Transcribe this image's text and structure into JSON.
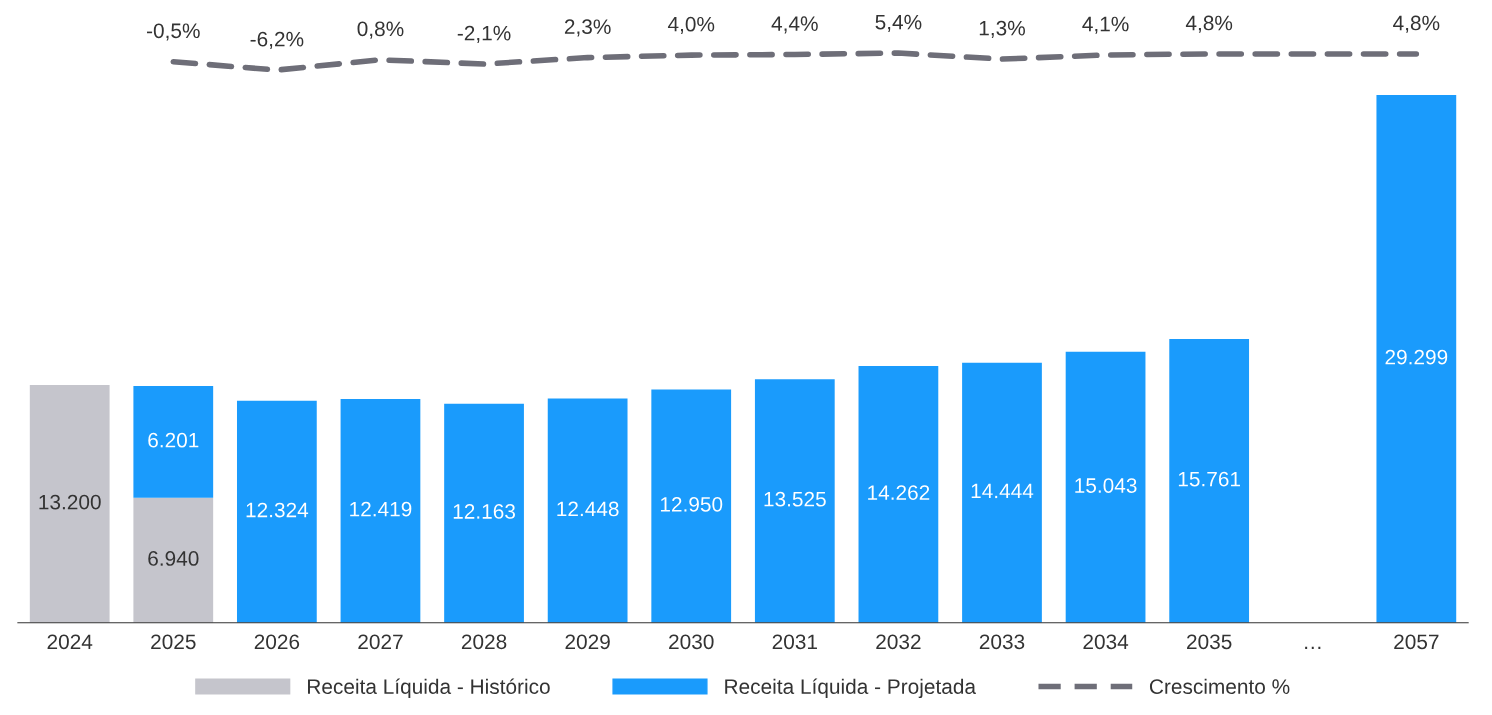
{
  "chart_data": [
    {
      "type": "line",
      "categories": [
        null,
        null,
        null,
        null,
        null,
        null,
        null,
        null,
        null,
        null,
        null,
        null,
        null,
        null
      ],
      "series": [
        {
          "name": "Crescimento %",
          "color": "#6e6e78",
          "values": [
            null,
            -0.5,
            -6.2,
            0.8,
            -2.1,
            2.3,
            4.0,
            4.4,
            5.4,
            1.3,
            4.1,
            4.8,
            null,
            4.8
          ],
          "value_labels": [
            null,
            "-0,5%",
            "-6,2%",
            "0,8%",
            "-2,1%",
            "2,3%",
            "4,0%",
            "4,4%",
            "5,4%",
            "1,3%",
            "4,1%",
            "4,8%",
            null,
            "4,8%"
          ]
        }
      ],
      "line_style": "dashed",
      "marker": "none",
      "data_labels": true,
      "tick_labels": false,
      "grid": false
    },
    {
      "type": "bar",
      "stacked": true,
      "categories": [
        "2024",
        "2025",
        "2026",
        "2027",
        "2028",
        "2029",
        "2030",
        "2031",
        "2032",
        "2033",
        "2034",
        "2035",
        "…",
        "2057"
      ],
      "series": [
        {
          "name": "Receita Líquida - Histórico",
          "color": "#c5c5cc",
          "values": [
            13200,
            6940,
            null,
            null,
            null,
            null,
            null,
            null,
            null,
            null,
            null,
            null,
            null,
            null
          ],
          "value_labels": [
            "13.200",
            "6.940",
            null,
            null,
            null,
            null,
            null,
            null,
            null,
            null,
            null,
            null,
            null,
            null
          ]
        },
        {
          "name": "Receita Líquida - Projetada",
          "color": "#1a9bfc",
          "values": [
            null,
            6201,
            12324,
            12419,
            12163,
            12448,
            12950,
            13525,
            14262,
            14444,
            15043,
            15761,
            null,
            29299
          ],
          "value_labels": [
            null,
            "6.201",
            "12.324",
            "12.419",
            "12.163",
            "12.448",
            "12.950",
            "13.525",
            "14.262",
            "14.444",
            "15.043",
            "15.761",
            null,
            "29.299"
          ]
        }
      ],
      "data_labels": true,
      "legend": "bottom",
      "tick_labels": "x",
      "grid": false
    }
  ]
}
